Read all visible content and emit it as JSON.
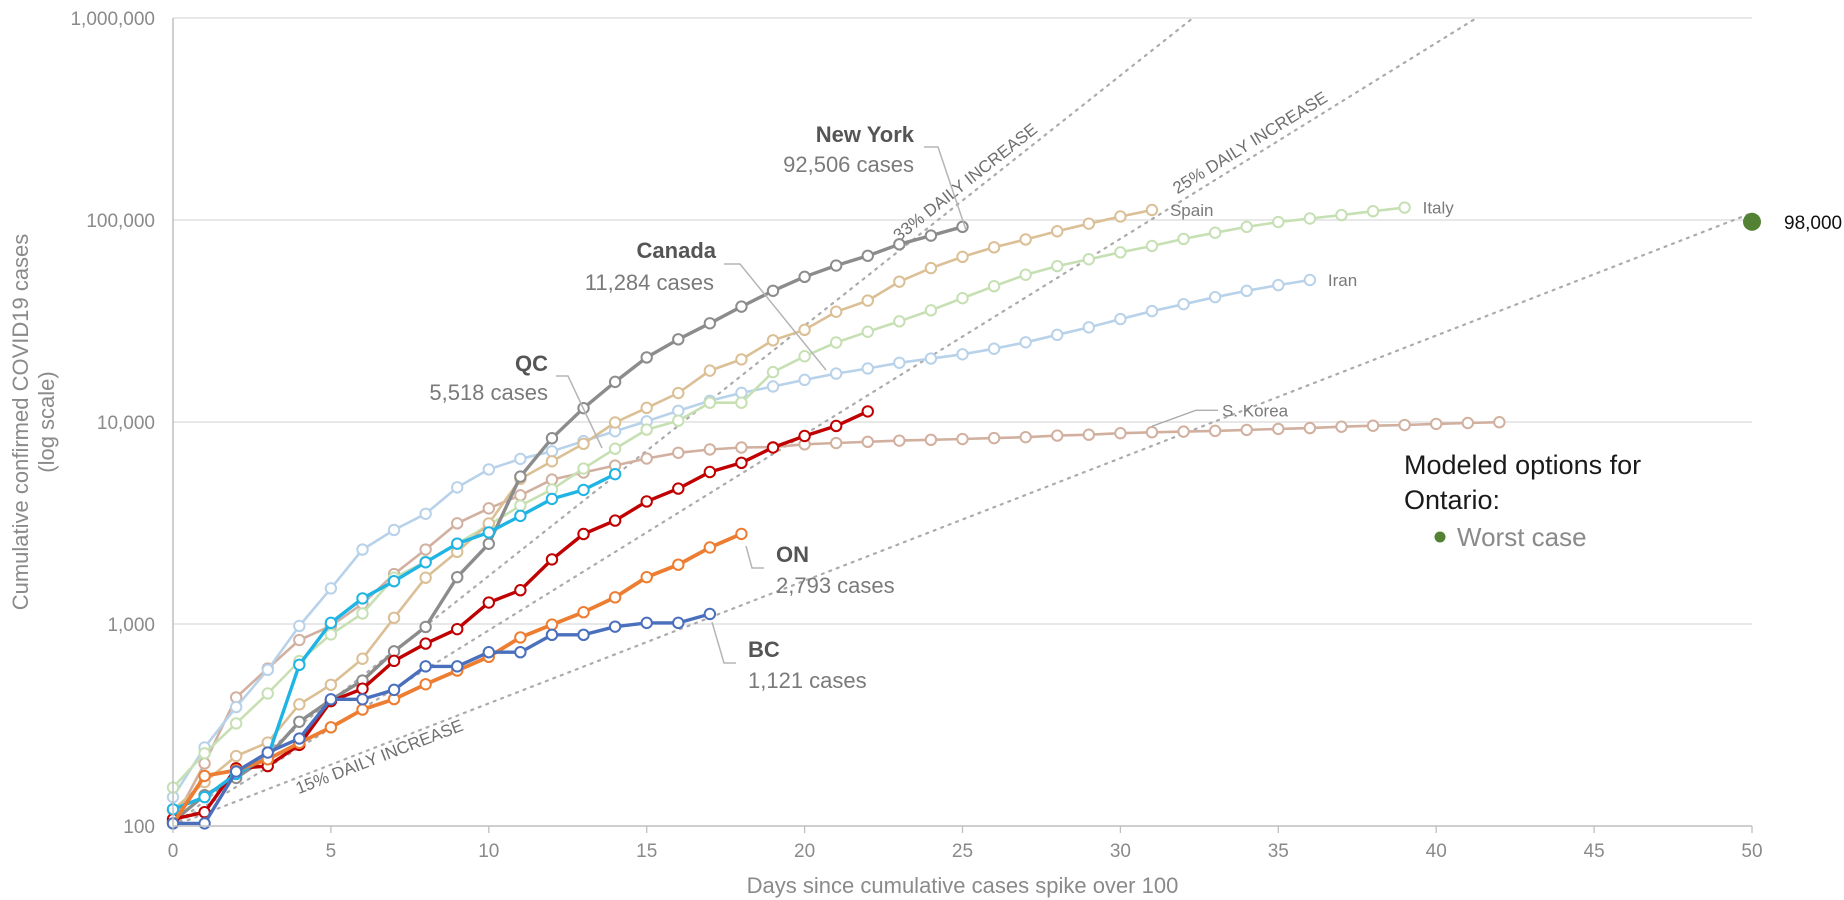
{
  "chart_data": {
    "type": "line",
    "x_axis": {
      "label": "Days since cumulative cases spike over 100",
      "range": [
        0,
        50
      ],
      "ticks": [
        0,
        5,
        10,
        15,
        20,
        25,
        30,
        35,
        40,
        45,
        50
      ]
    },
    "y_axis": {
      "label_line1": "Cumulative confirmed COVID19 cases",
      "label_line2": "(log scale)",
      "scale": "log",
      "range": [
        100,
        1000000
      ],
      "ticks": [
        {
          "value": 100,
          "label": "100"
        },
        {
          "value": 1000,
          "label": "1,000"
        },
        {
          "value": 10000,
          "label": "10,000"
        },
        {
          "value": 100000,
          "label": "100,000"
        },
        {
          "value": 1000000,
          "label": "1,000,000"
        }
      ]
    },
    "grid": "horizontal",
    "growth_lines": [
      {
        "label": "33% DAILY INCREASE",
        "rate": 0.33
      },
      {
        "label": "25% DAILY INCREASE",
        "rate": 0.25
      },
      {
        "label": "15% DAILY INCREASE",
        "rate": 0.15
      }
    ],
    "series": [
      {
        "name": "S. Korea",
        "color": "#d2b0a0",
        "label": "S. Korea",
        "values": [
          104,
          204,
          433,
          602,
          833,
          977,
          1261,
          1766,
          2337,
          3150,
          3736,
          4335,
          5186,
          5621,
          6088,
          6593,
          7041,
          7313,
          7478,
          7513,
          7755,
          7869,
          7979,
          8086,
          8162,
          8236,
          8320,
          8413,
          8565,
          8652,
          8799,
          8897,
          8961,
          9037,
          9137,
          9241,
          9332,
          9478,
          9583,
          9661,
          9786,
          9887,
          9976
        ]
      },
      {
        "name": "Iran",
        "color": "#b8d2ea",
        "label": "Iran",
        "values": [
          139,
          245,
          388,
          593,
          978,
          1501,
          2336,
          2922,
          3513,
          4747,
          5823,
          6566,
          7161,
          8042,
          9000,
          10075,
          11364,
          12729,
          13938,
          14991,
          16169,
          17361,
          18407,
          19644,
          20610,
          21638,
          23049,
          24811,
          27017,
          29406,
          32332,
          35408,
          38309,
          41495,
          44605,
          47593,
          50468
        ]
      },
      {
        "name": "Italy",
        "color": "#c6e0b4",
        "label": "Italy",
        "values": [
          155,
          229,
          322,
          453,
          655,
          888,
          1128,
          1694,
          2036,
          2502,
          3089,
          3858,
          4636,
          5883,
          7375,
          9172,
          10149,
          12462,
          12462,
          17660,
          21157,
          24747,
          27980,
          31506,
          35713,
          41035,
          47021,
          53578,
          59138,
          63927,
          69176,
          74386,
          80589,
          86498,
          92472,
          97689,
          101739,
          105792,
          110574,
          115242
        ]
      },
      {
        "name": "Spain",
        "color": "#dbbf95",
        "label": "Spain",
        "values": [
          120,
          165,
          222,
          259,
          400,
          500,
          673,
          1073,
          1695,
          2277,
          3146,
          5232,
          6391,
          7798,
          9942,
          11748,
          13910,
          17963,
          20410,
          25374,
          28603,
          35136,
          39885,
          49515,
          57786,
          65719,
          73235,
          80110,
          87956,
          95923,
          104118,
          112065
        ]
      },
      {
        "name": "New York",
        "color": "#8c8c8c",
        "label": "",
        "values": [
          105,
          142,
          173,
          220,
          328,
          421,
          525,
          732,
          967,
          1706,
          2495,
          5365,
          8310,
          11710,
          15800,
          20875,
          25665,
          30811,
          37258,
          44635,
          52318,
          59513,
          66497,
          75795,
          83712,
          92506
        ]
      },
      {
        "name": "Canada",
        "color": "#c00000",
        "label": "",
        "values": [
          108,
          117,
          193,
          198,
          252,
          415,
          478,
          657,
          800,
          943,
          1277,
          1470,
          2088,
          2790,
          3251,
          4043,
          4682,
          5655,
          6280,
          7474,
          8527,
          9560,
          11284
        ]
      },
      {
        "name": "QC",
        "color": "#1fb4e4",
        "label": "",
        "values": [
          121,
          139,
          181,
          219,
          628,
          1013,
          1339,
          1629,
          2021,
          2498,
          2840,
          3430,
          4162,
          4611,
          5518
        ]
      },
      {
        "name": "ON",
        "color": "#ed7d31",
        "label": "",
        "values": [
          103,
          177,
          189,
          214,
          258,
          308,
          377,
          425,
          503,
          588,
          688,
          858,
          993,
          1144,
          1355,
          1706,
          1966,
          2392,
          2793
        ]
      },
      {
        "name": "BC",
        "color": "#4a6fbd",
        "label": "",
        "values": [
          103,
          103,
          186,
          231,
          271,
          424,
          424,
          472,
          617,
          617,
          725,
          725,
          884,
          884,
          970,
          1013,
          1013,
          1121
        ]
      }
    ],
    "callouts": [
      {
        "series": "New York",
        "name": "New York",
        "cases": "92,506 cases"
      },
      {
        "series": "Canada",
        "name": "Canada",
        "cases": "11,284 cases"
      },
      {
        "series": "QC",
        "name": "QC",
        "cases": "5,518 cases"
      },
      {
        "series": "ON",
        "name": "ON",
        "cases": "2,793 cases"
      },
      {
        "series": "BC",
        "name": "BC",
        "cases": "1,121 cases"
      }
    ],
    "modeled": {
      "title_line1": "Modeled options for",
      "title_line2": "Ontario:",
      "items": [
        {
          "label": "Worst case",
          "color": "#548235"
        }
      ],
      "worst_case_point": {
        "x": 50,
        "y": 98000,
        "label": "98,000"
      }
    }
  }
}
